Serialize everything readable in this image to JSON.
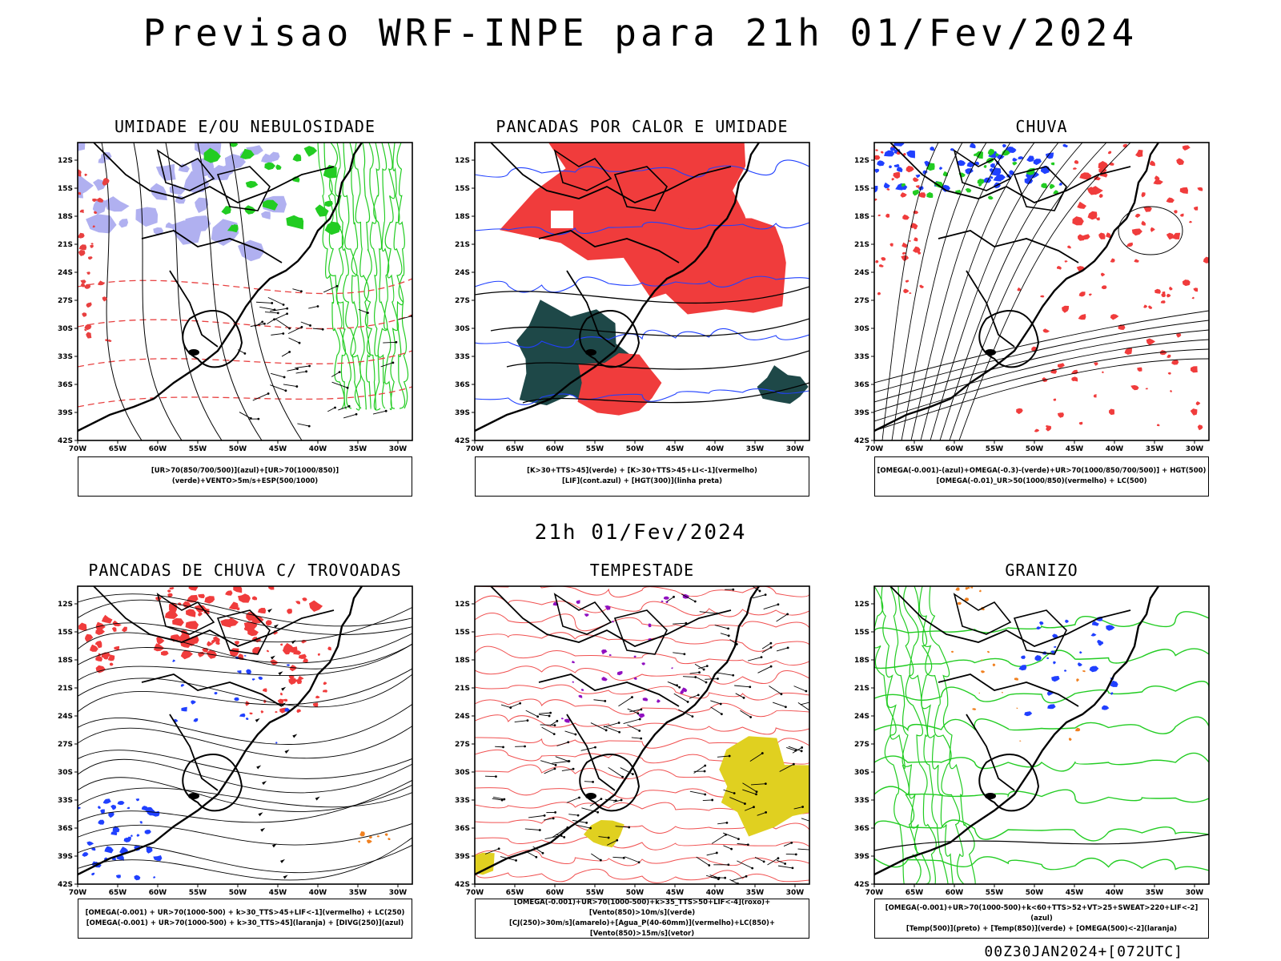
{
  "main_title": "Previsao WRF-INPE  para 21h 01/Fev/2024",
  "mid_title": "21h 01/Fev/2024",
  "footer": "00Z30JAN2024+[072UTC]",
  "lat_ticks": [
    "12S",
    "15S",
    "18S",
    "21S",
    "24S",
    "27S",
    "30S",
    "33S",
    "36S",
    "39S",
    "42S"
  ],
  "lon_ticks": [
    "70W",
    "65W",
    "60W",
    "55W",
    "50W",
    "45W",
    "40W",
    "35W",
    "30W"
  ],
  "panels": [
    {
      "title": "UMIDADE E/OU NEBULOSIDADE",
      "legend": [
        "[UR>70(850/700/500)](azul)+[UR>70(1000/850)](verde)+VENTO>5m/s+ESP(500/1000)"
      ]
    },
    {
      "title": "PANCADAS POR CALOR E UMIDADE",
      "legend": [
        "[K>30+TTS>45](verde) + [K>30+TTS>45+LI<-1](vermelho)",
        "[LIF](cont.azul) + [HGT(300)](linha preta)"
      ]
    },
    {
      "title": "CHUVA",
      "legend": [
        "[OMEGA(-0.001)-(azul)+OMEGA(-0.3)-(verde)+UR>70(1000/850/700/500)] + HGT(500)",
        "[OMEGA(-0.01)_UR>50(1000/850)(vermelho) + LC(500)"
      ]
    },
    {
      "title": "PANCADAS DE CHUVA C/ TROVOADAS",
      "legend": [
        "[OMEGA(-0.001) + UR>70(1000-500) + k>30_TTS>45+LIF<-1](vermelho) + LC(250)",
        "[OMEGA(-0.001) + UR>70(1000-500) + k>30_TTS>45](laranja) + [DIVG(250)](azul)"
      ]
    },
    {
      "title": "TEMPESTADE",
      "legend": [
        "[OMEGA(-0.001)+UR>70(1000-500)+k>35_TTS>50+LIF<-4](roxo)+[Vento(850)>10m/s](verde)",
        "[CJ(250)>30m/s](amarelo)+[Agua_P(40-60mm)](vermelho)+LC(850)+[Vento(850)>15m/s](vetor)"
      ]
    },
    {
      "title": "GRANIZO",
      "legend": [
        "[OMEGA(-0.001)+UR>70(1000-500)+k<60+TTS>52+VT>25+SWEAT>220+LIF<-2](azul)",
        "[Temp(500)](preto) + [Temp(850)](verde) + [OMEGA(500)<-2](laranja)"
      ]
    }
  ],
  "colors": {
    "red": "#f03c3c",
    "green": "#22cc22",
    "blue": "#2040ff",
    "lavender": "#b0b0f0",
    "dark_teal": "#1e4848",
    "yellow": "#e0d020",
    "purple": "#9010c0",
    "orange": "#f08020"
  }
}
